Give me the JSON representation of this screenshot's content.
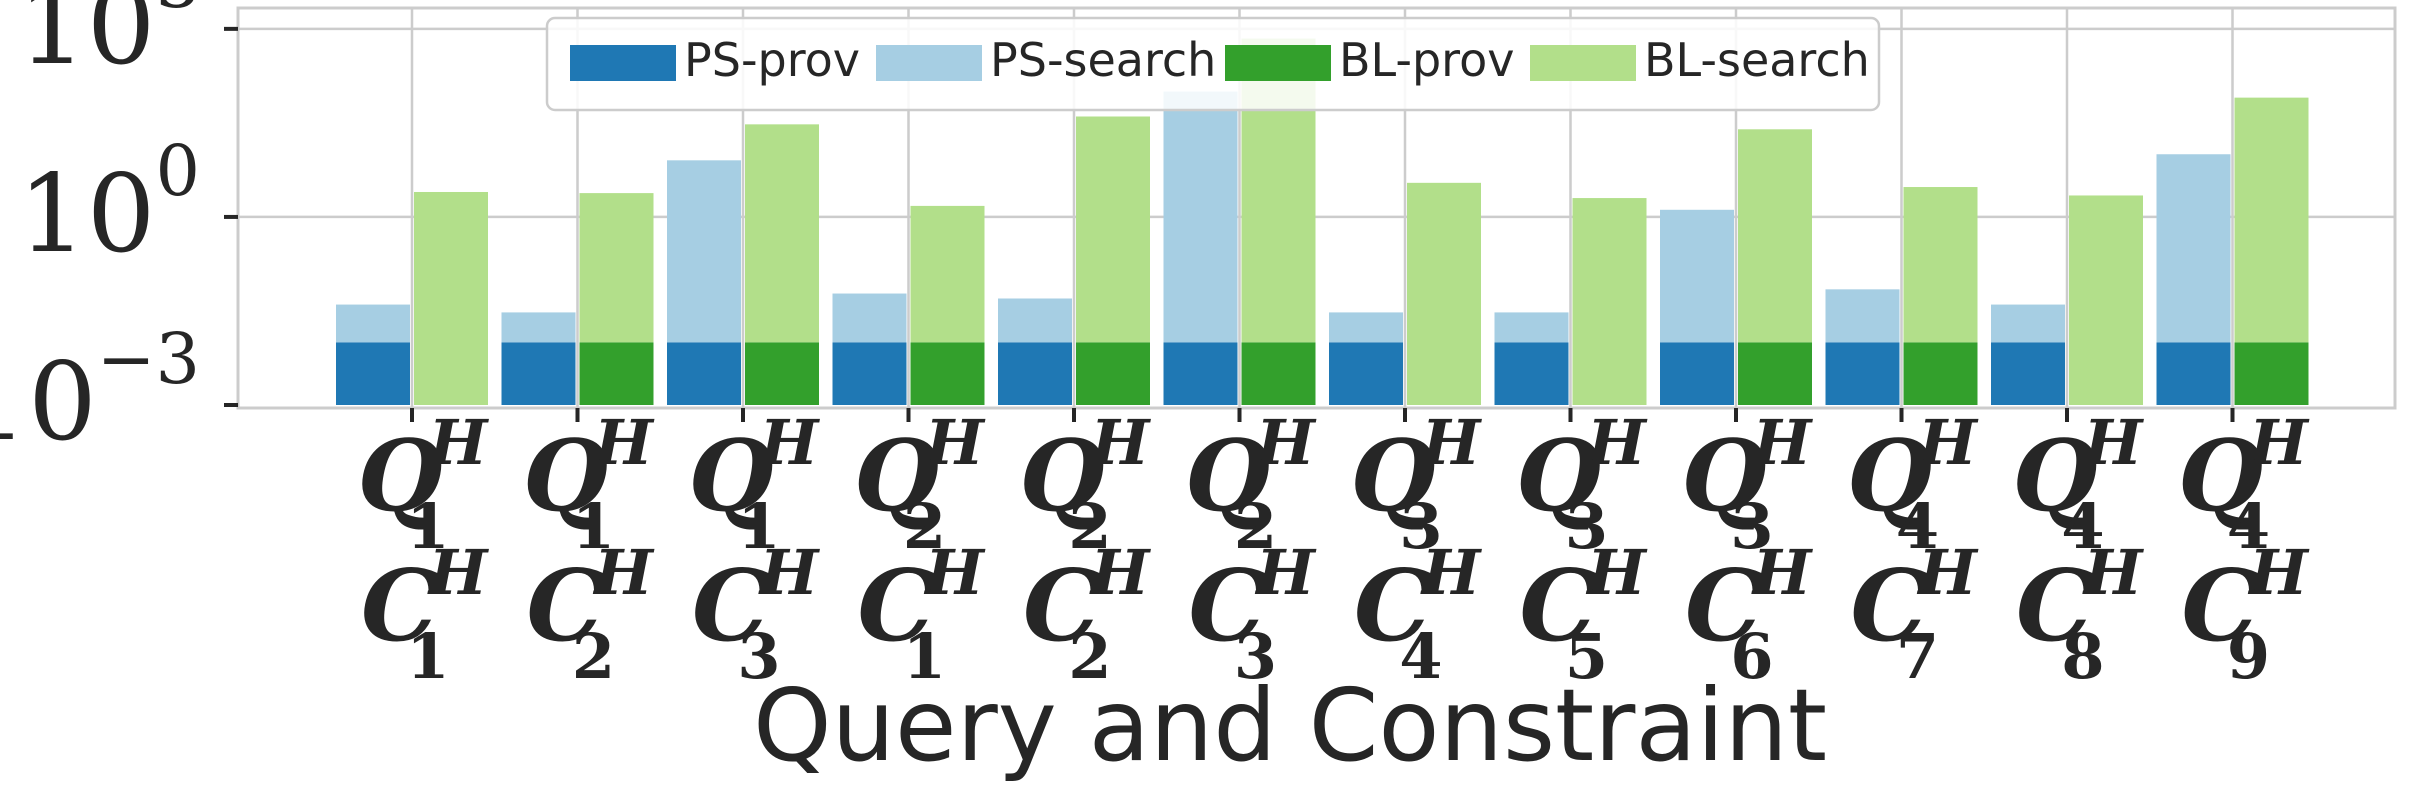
{
  "chart_data": {
    "type": "bar",
    "xlabel": "Query and Constraint",
    "ylabel": "",
    "yscale": "log",
    "ylim": [
      0.001,
      2000
    ],
    "yticks": [
      {
        "value": 0.001,
        "base": "10",
        "exp": "−3"
      },
      {
        "value": 1,
        "base": "10",
        "exp": "0"
      },
      {
        "value": 1000,
        "base": "10",
        "exp": "3"
      }
    ],
    "grid": true,
    "legend_position": "top-center",
    "categories": [
      {
        "q": "1",
        "c": "1"
      },
      {
        "q": "1",
        "c": "2"
      },
      {
        "q": "1",
        "c": "3"
      },
      {
        "q": "2",
        "c": "1"
      },
      {
        "q": "2",
        "c": "2"
      },
      {
        "q": "2",
        "c": "3"
      },
      {
        "q": "3",
        "c": "4"
      },
      {
        "q": "3",
        "c": "5"
      },
      {
        "q": "3",
        "c": "6"
      },
      {
        "q": "4",
        "c": "7"
      },
      {
        "q": "4",
        "c": "8"
      },
      {
        "q": "4",
        "c": "9"
      }
    ],
    "category_letters": {
      "query": "Q",
      "constraint": "C",
      "superscript": "H"
    },
    "groups": [
      {
        "stack": [
          {
            "name": "PS-prov",
            "color": "#1f78b4",
            "values": [
              0.01,
              0.01,
              0.01,
              0.01,
              0.01,
              0.01,
              0.01,
              0.01,
              0.01,
              0.01,
              0.01,
              0.01
            ]
          },
          {
            "name": "PS-search",
            "color": "#a6cee3",
            "values": [
              0.04,
              0.03,
              8,
              0.06,
              0.05,
              100,
              0.03,
              0.03,
              1.3,
              0.07,
              0.04,
              10
            ]
          }
        ]
      },
      {
        "stack": [
          {
            "name": "BL-prov",
            "color": "#33a02c",
            "values": [
              null,
              0.01,
              0.01,
              0.01,
              0.01,
              0.01,
              null,
              null,
              0.01,
              0.01,
              null,
              0.01
            ]
          },
          {
            "name": "BL-search",
            "color": "#b2df8a",
            "values": [
              2.5,
              2.4,
              30,
              1.5,
              40,
              700,
              3.5,
              2,
              25,
              3,
              2.2,
              80
            ]
          }
        ]
      }
    ]
  }
}
